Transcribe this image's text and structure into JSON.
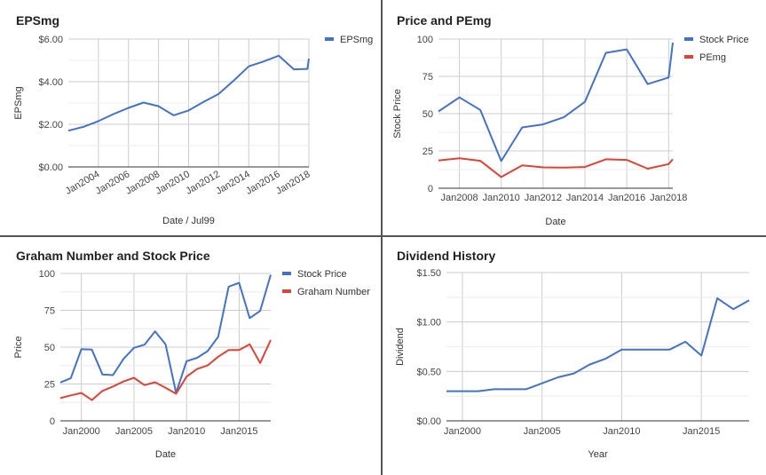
{
  "chart_data": [
    {
      "type": "line",
      "title": "EPSmg",
      "xlabel": "Date / Jul99",
      "ylabel": "EPSmg",
      "x_ticks": [
        "Jan2004",
        "Jan2006",
        "Jan2008",
        "Jan2010",
        "Jan2012",
        "Jan2014",
        "Jan2016",
        "Jan2018"
      ],
      "y_ticks": [
        "$0.00",
        "$2.00",
        "$4.00",
        "$6.00"
      ],
      "xlim": [
        2002.0,
        2018.0
      ],
      "ylim": [
        0,
        6
      ],
      "legend_position": "right",
      "grid": true,
      "series": [
        {
          "name": "EPSmg",
          "color": "#4472c4",
          "x": [
            2002.0,
            2003.0,
            2004.0,
            2005.0,
            2006.0,
            2007.0,
            2008.0,
            2009.0,
            2010.0,
            2011.0,
            2012.0,
            2013.0,
            2014.0,
            2015.0,
            2016.0,
            2017.0,
            2017.9,
            2018.0
          ],
          "values": [
            1.7,
            1.88,
            2.15,
            2.48,
            2.77,
            3.02,
            2.85,
            2.42,
            2.65,
            3.05,
            3.43,
            4.05,
            4.72,
            4.95,
            5.22,
            4.58,
            4.6,
            5.08
          ]
        }
      ]
    },
    {
      "type": "line",
      "title": "Price and PEmg",
      "xlabel": "Date",
      "ylabel": "Stock Price",
      "x_ticks": [
        "Jan2008",
        "Jan2010",
        "Jan2012",
        "Jan2014",
        "Jan2016",
        "Jan2018"
      ],
      "y_ticks": [
        "0",
        "25",
        "50",
        "75",
        "100"
      ],
      "xlim": [
        2007.0,
        2018.2
      ],
      "ylim": [
        0,
        100
      ],
      "legend_position": "right",
      "grid": true,
      "series": [
        {
          "name": "Stock Price",
          "color": "#4472c4",
          "x": [
            2007.0,
            2008.0,
            2009.0,
            2010.0,
            2011.0,
            2012.0,
            2013.0,
            2014.0,
            2015.0,
            2016.0,
            2017.0,
            2018.0,
            2018.2
          ],
          "values": [
            51.5,
            60.9,
            52.5,
            18.2,
            40.8,
            42.8,
            47.7,
            57.9,
            90.8,
            93.1,
            69.8,
            74.2,
            97.6
          ]
        },
        {
          "name": "PEmg",
          "color": "#db4437",
          "x": [
            2007.0,
            2008.0,
            2009.0,
            2010.0,
            2011.0,
            2012.0,
            2013.0,
            2014.0,
            2015.0,
            2016.0,
            2017.0,
            2018.0,
            2018.2
          ],
          "values": [
            18.6,
            20.1,
            18.4,
            7.5,
            15.3,
            14.0,
            13.8,
            14.2,
            19.4,
            19.0,
            13.1,
            16.2,
            19.4
          ]
        }
      ]
    },
    {
      "type": "line",
      "title": "Graham Number and Stock Price",
      "xlabel": "Date",
      "ylabel": "Price",
      "x_ticks": [
        "Jan2000",
        "Jan2005",
        "Jan2010",
        "Jan2015"
      ],
      "y_ticks": [
        "0",
        "25",
        "50",
        "75",
        "100"
      ],
      "xlim": [
        1998.0,
        2018.0
      ],
      "ylim": [
        0,
        100
      ],
      "legend_position": "right",
      "grid": true,
      "series": [
        {
          "name": "Stock Price",
          "color": "#4472c4",
          "x": [
            1998.0,
            1999.0,
            2000.0,
            2001.0,
            2002.0,
            2003.0,
            2004.0,
            2005.0,
            2006.0,
            2007.0,
            2008.0,
            2009.0,
            2010.0,
            2011.0,
            2012.0,
            2013.0,
            2014.0,
            2015.0,
            2016.0,
            2017.0,
            2018.0
          ],
          "values": [
            26.0,
            29.0,
            48.7,
            48.3,
            31.5,
            31.0,
            42.0,
            49.5,
            51.7,
            60.7,
            52.0,
            19.0,
            40.5,
            42.8,
            47.3,
            57.0,
            91.0,
            93.6,
            69.7,
            74.6,
            99.1
          ]
        },
        {
          "name": "Graham Number",
          "color": "#db4437",
          "x": [
            1998.0,
            1999.0,
            2000.0,
            2001.0,
            2002.0,
            2003.0,
            2004.0,
            2005.0,
            2006.0,
            2007.0,
            2008.0,
            2009.0,
            2010.0,
            2011.0,
            2012.0,
            2013.0,
            2014.0,
            2015.0,
            2016.0,
            2017.0,
            2018.0
          ],
          "values": [
            15.4,
            17.3,
            18.9,
            14.1,
            20.3,
            23.3,
            26.7,
            29.2,
            24.2,
            26.2,
            22.4,
            18.4,
            30.0,
            35.2,
            37.6,
            43.5,
            48.1,
            48.1,
            52.0,
            39.2,
            54.9
          ]
        }
      ]
    },
    {
      "type": "line",
      "title": "Dividend History",
      "xlabel": "Year",
      "ylabel": "Dividend",
      "x_ticks": [
        "Jan2000",
        "Jan2005",
        "Jan2010",
        "Jan2015"
      ],
      "y_ticks": [
        "$0.00",
        "$0.50",
        "$1.00",
        "$1.50"
      ],
      "xlim": [
        1999.0,
        2018.0
      ],
      "ylim": [
        0,
        1.5
      ],
      "legend_position": "none",
      "grid": true,
      "series": [
        {
          "color": "#4472c4",
          "x": [
            1999,
            2000,
            2001,
            2002,
            2003,
            2004,
            2005,
            2006,
            2007,
            2008,
            2009,
            2010,
            2011,
            2012,
            2013,
            2014,
            2015,
            2016,
            2017,
            2018
          ],
          "values": [
            0.3,
            0.3,
            0.3,
            0.32,
            0.32,
            0.32,
            0.38,
            0.44,
            0.48,
            0.57,
            0.63,
            0.72,
            0.72,
            0.72,
            0.72,
            0.8,
            0.66,
            1.24,
            1.13,
            1.22
          ]
        }
      ]
    }
  ]
}
